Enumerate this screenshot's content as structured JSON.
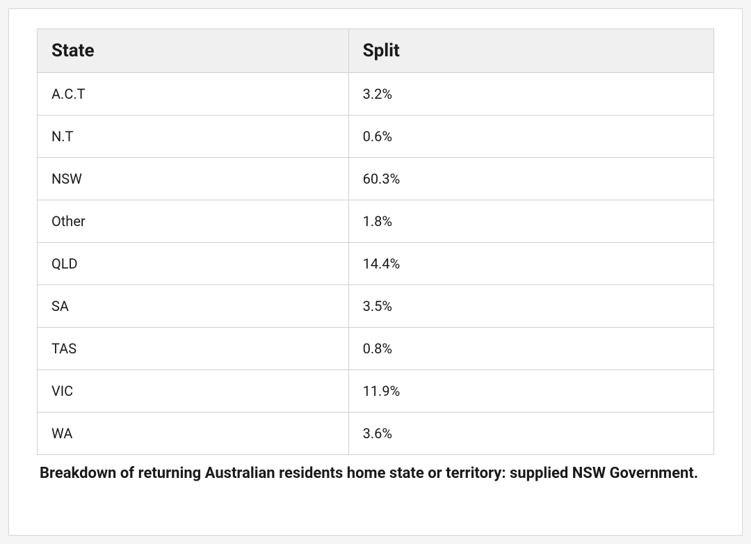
{
  "table": {
    "columns": [
      "State",
      "Split"
    ],
    "rows": [
      {
        "state": "A.C.T",
        "split": "3.2%"
      },
      {
        "state": "N.T",
        "split": "0.6%"
      },
      {
        "state": "NSW",
        "split": "60.3%"
      },
      {
        "state": "Other",
        "split": "1.8%"
      },
      {
        "state": "QLD",
        "split": "14.4%"
      },
      {
        "state": "SA",
        "split": "3.5%"
      },
      {
        "state": "TAS",
        "split": "0.8%"
      },
      {
        "state": "VIC",
        "split": "11.9%"
      },
      {
        "state": "WA",
        "split": "3.6%"
      }
    ],
    "column_widths": [
      "46%",
      "54%"
    ],
    "header_bg": "#f0f0f0",
    "cell_bg": "#ffffff",
    "border_color": "#d0d0d0",
    "header_fontsize": 26,
    "cell_fontsize": 20,
    "text_color": "#1a1a1a"
  },
  "caption": " Breakdown of returning Australian residents home state or territory: supplied NSW Government.",
  "caption_fontsize": 22,
  "caption_fontweight": 700,
  "outer_border_color": "#d6d6d6",
  "background_color": "#ffffff",
  "page_bg": "#f5f5f5"
}
